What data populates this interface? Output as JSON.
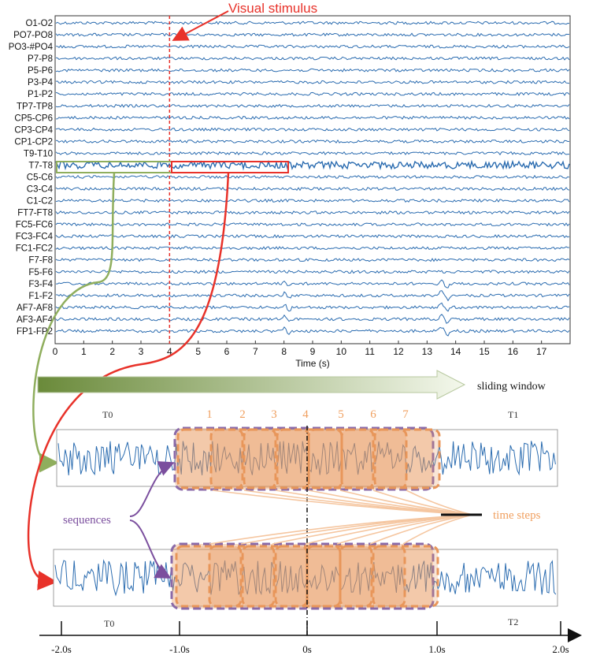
{
  "eeg_panel": {
    "stimulus_label": "Visual stimulus",
    "xlabel": "Time (s)",
    "x_ticks": [
      "0",
      "1",
      "2",
      "3",
      "4",
      "5",
      "6",
      "7",
      "8",
      "9",
      "10",
      "11",
      "12",
      "13",
      "14",
      "15",
      "16",
      "17"
    ],
    "x_range": [
      0,
      18
    ],
    "stimulus_time": 4,
    "channels": [
      "O1-O2",
      "PO7-PO8",
      "PO3-#PO4",
      "P7-P8",
      "P5-P6",
      "P3-P4",
      "P1-P2",
      "TP7-TP8",
      "CP5-CP6",
      "CP3-CP4",
      "CP1-CP2",
      "T9-T10",
      "T7-T8",
      "C5-C6",
      "C3-C4",
      "C1-C2",
      "FT7-FT8",
      "FC5-FC6",
      "FC3-FC4",
      "FC1-FC2",
      "F7-F8",
      "F5-F6",
      "F3-F4",
      "F1-F2",
      "AF7-AF8",
      "AF3-AF4",
      "FP1-FP2"
    ],
    "trace_color": "#2b6cb0",
    "stimulus_color": "#e8322a"
  },
  "sliding_window": {
    "label": "sliding window"
  },
  "segments": {
    "top_left_label": "T0",
    "top_right_label": "T1",
    "step_numbers": [
      "1",
      "2",
      "3",
      "4",
      "5",
      "6",
      "7"
    ],
    "sequences_label": "sequences",
    "time_steps_label": "time steps"
  },
  "timeline": {
    "left_label": "T0",
    "right_label": "T2",
    "ticks": [
      "-2.0s",
      "-1.0s",
      "0s",
      "1.0s",
      "2.0s"
    ]
  },
  "colors": {
    "green_connector": "#8fae5d",
    "red_connector": "#e8322a",
    "orange_box": "#e8965a",
    "purple_border": "#8a6aa8",
    "purple_text": "#7b4f9e",
    "orange_text": "#f0a060"
  }
}
